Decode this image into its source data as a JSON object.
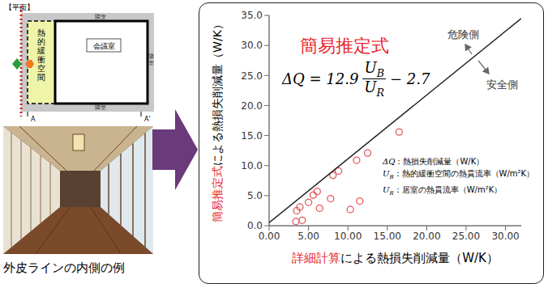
{
  "plan": {
    "heading": "【平面】",
    "buffer_label": "熱的緩衝空間",
    "room_label": "会議室",
    "neighbor_labels": [
      "隣室",
      "隣室",
      "隣室"
    ],
    "section_marks": [
      "A",
      "A'"
    ]
  },
  "photo_caption": "外皮ラインの内側の例",
  "chart_data": {
    "type": "scatter",
    "title": "簡易推定式",
    "formula": {
      "prefix": "ΔQ = 12.9",
      "numerator": {
        "base": "U",
        "sub": "B"
      },
      "denominator": {
        "base": "U",
        "sub": "R"
      },
      "suffix": "− 2.7"
    },
    "definitions": [
      {
        "symbol": {
          "base": "ΔQ"
        },
        "text": "：熱損失削減量（W/K）"
      },
      {
        "symbol": {
          "base": "U",
          "sub": "B"
        },
        "text": "：熱的緩衝空間の熱貫流率（W/m²K）"
      },
      {
        "symbol": {
          "base": "U",
          "sub": "R"
        },
        "text": "：居室の熱貫流率（W/m²K）"
      }
    ],
    "annotations": [
      "危険側",
      "安全側"
    ],
    "x_label": [
      "詳細計算",
      "による熱損失削減量（W/K）"
    ],
    "y_label": [
      "簡易推定式",
      "による熱損失削減量（W/K）"
    ],
    "xlim": [
      0,
      32
    ],
    "xticks": [
      {
        "value": 0,
        "label": "0.00"
      },
      {
        "value": 5,
        "label": "5.00"
      },
      {
        "value": 10,
        "label": "10.00"
      },
      {
        "value": 15,
        "label": "15.00"
      },
      {
        "value": 20,
        "label": "20.00"
      },
      {
        "value": 25,
        "label": "25.00"
      },
      {
        "value": 30,
        "label": "30.00"
      }
    ],
    "ylim": [
      0,
      35
    ],
    "yticks": [
      {
        "value": 0,
        "label": "0.0"
      },
      {
        "value": 5,
        "label": "5.0"
      },
      {
        "value": 10,
        "label": "10.0"
      },
      {
        "value": 15,
        "label": "15.0"
      },
      {
        "value": 20,
        "label": "20.0"
      },
      {
        "value": 25,
        "label": "25.0"
      },
      {
        "value": 30,
        "label": "30.0"
      },
      {
        "value": 35,
        "label": "35.0"
      }
    ],
    "grid": false,
    "series": [
      {
        "type": "scatter",
        "color": "#e2575a",
        "marker": "circle",
        "x": [
          3.4,
          3.5,
          3.9,
          4.2,
          5.0,
          5.6,
          6.1,
          6.4,
          7.8,
          8.1,
          8.8,
          10.3,
          11.1,
          11.5,
          12.5,
          16.5
        ],
        "values": [
          0.7,
          2.5,
          3.1,
          0.9,
          3.9,
          5.1,
          5.7,
          2.9,
          4.5,
          8.4,
          9.1,
          2.7,
          10.9,
          4.1,
          12.1,
          15.6
        ]
      },
      {
        "type": "line",
        "color": "#222222",
        "x": [
          0,
          32
        ],
        "values": [
          0.5,
          34.5
        ]
      }
    ]
  }
}
